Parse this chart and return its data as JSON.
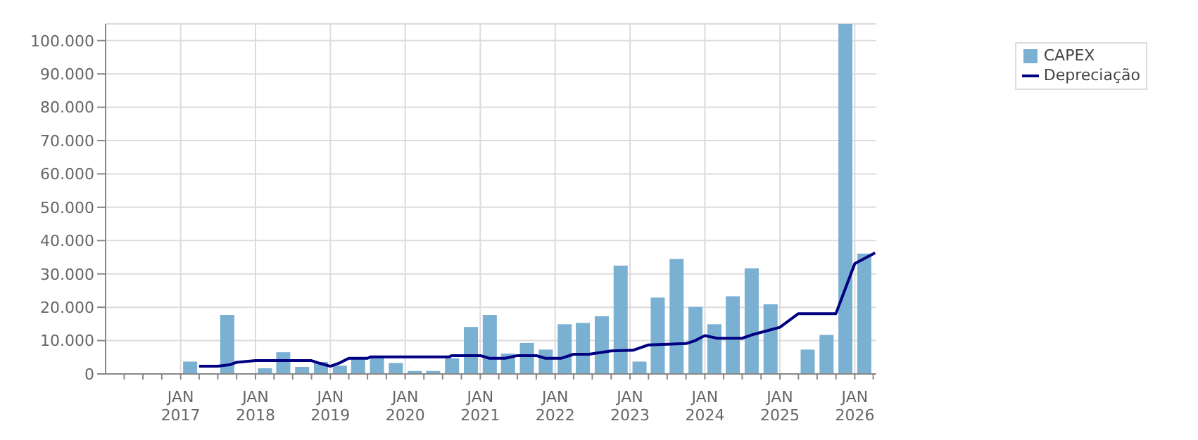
{
  "chart_data": {
    "type": "bar",
    "xlim": [
      "2016-01-01",
      "2026-04-15"
    ],
    "xticks": [
      {
        "value": "2016-04-01",
        "label": null
      },
      {
        "value": "2016-07-01",
        "label": null
      },
      {
        "value": "2016-10-01",
        "label": null
      },
      {
        "value": "2017-01-01",
        "label": "JAN\n2017"
      },
      {
        "value": "2017-04-01",
        "label": null
      },
      {
        "value": "2017-07-01",
        "label": null
      },
      {
        "value": "2017-10-01",
        "label": null
      },
      {
        "value": "2018-01-01",
        "label": "JAN\n2018"
      },
      {
        "value": "2018-04-01",
        "label": null
      },
      {
        "value": "2018-07-01",
        "label": null
      },
      {
        "value": "2018-10-01",
        "label": null
      },
      {
        "value": "2019-01-01",
        "label": "JAN\n2019"
      },
      {
        "value": "2019-04-01",
        "label": null
      },
      {
        "value": "2019-07-01",
        "label": null
      },
      {
        "value": "2019-10-01",
        "label": null
      },
      {
        "value": "2020-01-01",
        "label": "JAN\n2020"
      },
      {
        "value": "2020-04-01",
        "label": null
      },
      {
        "value": "2020-07-01",
        "label": null
      },
      {
        "value": "2020-10-01",
        "label": null
      },
      {
        "value": "2021-01-01",
        "label": "JAN\n2021"
      },
      {
        "value": "2021-04-01",
        "label": null
      },
      {
        "value": "2021-07-01",
        "label": null
      },
      {
        "value": "2021-10-01",
        "label": null
      },
      {
        "value": "2022-01-01",
        "label": "JAN\n2022"
      },
      {
        "value": "2022-04-01",
        "label": null
      },
      {
        "value": "2022-07-01",
        "label": null
      },
      {
        "value": "2022-10-01",
        "label": null
      },
      {
        "value": "2023-01-01",
        "label": "JAN\n2023"
      },
      {
        "value": "2023-04-01",
        "label": null
      },
      {
        "value": "2023-07-01",
        "label": null
      },
      {
        "value": "2023-10-01",
        "label": null
      },
      {
        "value": "2024-01-01",
        "label": "JAN\n2024"
      },
      {
        "value": "2024-04-01",
        "label": null
      },
      {
        "value": "2024-07-01",
        "label": null
      },
      {
        "value": "2024-10-01",
        "label": null
      },
      {
        "value": "2025-01-01",
        "label": "JAN\n2025"
      },
      {
        "value": "2025-04-01",
        "label": null
      },
      {
        "value": "2025-07-01",
        "label": null
      },
      {
        "value": "2025-10-01",
        "label": null
      },
      {
        "value": "2026-01-01",
        "label": "JAN\n2026"
      },
      {
        "value": "2026-04-01",
        "label": null
      }
    ],
    "ylim": [
      0,
      105000
    ],
    "yticks": [
      {
        "value": 0,
        "label": "0"
      },
      {
        "value": 10000,
        "label": "10.000"
      },
      {
        "value": 20000,
        "label": "20.000"
      },
      {
        "value": 30000,
        "label": "30.000"
      },
      {
        "value": 40000,
        "label": "40.000"
      },
      {
        "value": 50000,
        "label": "50.000"
      },
      {
        "value": 60000,
        "label": "60.000"
      },
      {
        "value": 70000,
        "label": "70.000"
      },
      {
        "value": 80000,
        "label": "80.000"
      },
      {
        "value": 90000,
        "label": "90.000"
      },
      {
        "value": 100000,
        "label": "100.000"
      }
    ],
    "grid": true,
    "legend": "top right",
    "series": [
      {
        "name": "CAPEX",
        "color": "#7ab0d2",
        "x": [
          "2017-02-15",
          "2017-05-15",
          "2017-08-15",
          "2017-11-15",
          "2018-02-15",
          "2018-05-15",
          "2018-08-15",
          "2018-11-15",
          "2019-02-15",
          "2019-05-15",
          "2019-08-15",
          "2019-11-15",
          "2020-02-15",
          "2020-05-15",
          "2020-08-15",
          "2020-11-15",
          "2021-02-15",
          "2021-05-15",
          "2021-08-15",
          "2021-11-15",
          "2022-02-15",
          "2022-05-15",
          "2022-08-15",
          "2022-11-15",
          "2023-02-15",
          "2023-05-15",
          "2023-08-15",
          "2023-11-15",
          "2024-02-15",
          "2024-05-15",
          "2024-08-15",
          "2024-11-15",
          "2025-02-15",
          "2025-05-15",
          "2025-08-15",
          "2025-11-15",
          "2026-02-15"
        ],
        "values": [
          3700,
          null,
          17700,
          null,
          1700,
          6500,
          2100,
          3600,
          2500,
          4500,
          5100,
          3300,
          900,
          900,
          4700,
          14100,
          17700,
          6100,
          9300,
          7300,
          14900,
          15300,
          17300,
          32500,
          3700,
          22900,
          34500,
          20100,
          14900,
          23300,
          31700,
          20900,
          null,
          7300,
          11700,
          105000,
          36100
        ]
      },
      {
        "name": "Depreciação",
        "type": "line",
        "color": "#000080",
        "line_style": "solid",
        "marker": "none",
        "x": [
          "2017-04-01",
          "2017-07-01",
          "2017-09-01",
          "2017-10-01",
          "2018-01-01",
          "2018-10-01",
          "2018-11-15",
          "2019-01-01",
          "2019-02-15",
          "2019-04-01",
          "2019-07-01",
          "2019-07-15",
          "2020-08-01",
          "2020-08-15",
          "2021-01-01",
          "2021-02-15",
          "2021-05-01",
          "2021-07-01",
          "2021-10-01",
          "2021-11-15",
          "2022-02-01",
          "2022-04-01",
          "2022-06-15",
          "2022-10-01",
          "2023-01-15",
          "2023-04-01",
          "2023-10-01",
          "2023-11-15",
          "2024-01-01",
          "2024-03-01",
          "2024-07-01",
          "2024-08-15",
          "2025-01-01",
          "2025-04-01",
          "2025-10-01",
          "2026-01-01",
          "2026-04-10"
        ],
        "values": [
          2300,
          2300,
          2800,
          3500,
          4000,
          4000,
          3100,
          2300,
          3300,
          4700,
          4700,
          5100,
          5100,
          5500,
          5500,
          4700,
          4700,
          5500,
          5500,
          4700,
          4700,
          5900,
          5900,
          6900,
          7100,
          8700,
          9100,
          10000,
          11500,
          10700,
          10700,
          11700,
          14000,
          18100,
          18100,
          33100,
          36300
        ]
      }
    ]
  }
}
